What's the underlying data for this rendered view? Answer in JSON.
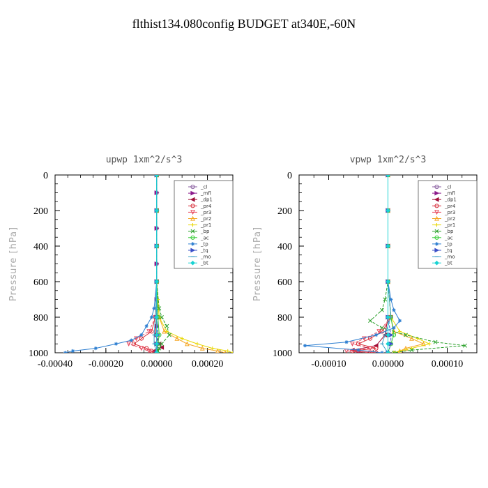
{
  "figure_title": "flthist134.080config  BUDGET at340E,-60N",
  "chart_data": [
    {
      "type": "line",
      "title": "upwp   1xm^2/s^3",
      "ylabel": "Pressure [hPa]",
      "xlim": [
        -0.0004,
        0.0003
      ],
      "ylim": [
        1000,
        0
      ],
      "xticks": [
        -0.0004,
        -0.0002,
        0.0,
        0.0002
      ],
      "xtick_labels": [
        "-0.00040",
        "-0.00020",
        "0.00000",
        "0.00020"
      ],
      "yticks": [
        0,
        200,
        400,
        600,
        800,
        1000
      ],
      "ytick_labels": [
        "0",
        "200",
        "400",
        "600",
        "800",
        "1000"
      ],
      "legend_position": "top-right",
      "grid": false,
      "series": [
        {
          "name": "_cl",
          "color": "#8a5fa0",
          "marker": "o",
          "pressure": [
            0,
            100,
            200,
            300,
            400,
            500,
            600,
            700,
            800,
            850,
            900,
            950,
            1000
          ],
          "values": [
            0,
            0,
            0,
            0,
            0,
            0,
            0,
            0,
            0,
            0,
            0,
            0,
            0
          ]
        },
        {
          "name": "_mfl",
          "color": "#8b1a8b",
          "marker": "tri-right",
          "pressure": [
            0,
            100,
            200,
            300,
            400,
            500,
            600,
            700,
            800,
            850,
            900,
            950,
            1000
          ],
          "values": [
            0,
            0,
            0,
            0,
            0,
            0,
            0,
            0,
            0,
            0,
            0,
            0,
            0
          ]
        },
        {
          "name": "_dp1",
          "color": "#a0103a",
          "marker": "tri-left",
          "pressure": [
            0,
            200,
            400,
            600,
            800,
            900,
            950,
            970,
            990,
            1000
          ],
          "values": [
            0,
            0,
            0,
            0,
            0,
            -5e-06,
            1e-05,
            2e-05,
            -1e-05,
            0
          ]
        },
        {
          "name": "_pr4",
          "color": "#d8303c",
          "marker": "o",
          "pressure": [
            0,
            200,
            400,
            600,
            800,
            880,
            920,
            950,
            975,
            990,
            1000
          ],
          "values": [
            0,
            0,
            0,
            0,
            -5e-06,
            -2e-05,
            -6e-05,
            -9e-05,
            -4e-05,
            -2e-05,
            0
          ]
        },
        {
          "name": "_pr3",
          "color": "#e84a5f",
          "marker": "tri-down",
          "pressure": [
            0,
            200,
            400,
            600,
            800,
            880,
            920,
            950,
            975,
            990,
            1000
          ],
          "values": [
            0,
            0,
            0,
            0,
            -5e-06,
            -3e-05,
            -8e-05,
            -0.00011,
            -6e-05,
            -3e-05,
            0
          ]
        },
        {
          "name": "_pr2",
          "color": "#f5a623",
          "marker": "tri-up",
          "pressure": [
            0,
            200,
            400,
            600,
            800,
            880,
            920,
            950,
            975,
            990,
            1000
          ],
          "values": [
            0,
            0,
            0,
            0,
            1e-05,
            3e-05,
            8e-05,
            0.00012,
            0.00018,
            0.00024,
            0.00027
          ]
        },
        {
          "name": "_pr1",
          "color": "#e8d800",
          "marker": "plus",
          "pressure": [
            0,
            200,
            400,
            600,
            700,
            800,
            880,
            920,
            950,
            975,
            990,
            1000
          ],
          "values": [
            0,
            0,
            0,
            0,
            5e-06,
            1e-05,
            4e-05,
            0.0001,
            0.00016,
            0.00022,
            0.00028,
            0.0003
          ]
        },
        {
          "name": "_bp",
          "color": "#2aa02a",
          "marker": "x",
          "pressure": [
            0,
            200,
            400,
            600,
            750,
            800,
            850,
            900,
            950,
            975,
            990,
            1000
          ],
          "values": [
            0,
            0,
            0,
            0,
            1e-05,
            2e-05,
            4e-05,
            5e-05,
            2e-05,
            1e-05,
            5e-06,
            0
          ]
        },
        {
          "name": "_ac",
          "color": "#33cc33",
          "marker": "o",
          "pressure": [
            0,
            200,
            400,
            600,
            800,
            900,
            950,
            1000
          ],
          "values": [
            0,
            0,
            0,
            0,
            5e-06,
            1e-05,
            5e-06,
            0
          ]
        },
        {
          "name": "_tp",
          "color": "#2e7fd1",
          "marker": "star",
          "pressure": [
            0,
            200,
            400,
            600,
            750,
            800,
            850,
            900,
            930,
            950,
            975,
            990,
            1000
          ],
          "values": [
            0,
            0,
            0,
            0,
            -1e-05,
            -2e-05,
            -4e-05,
            -6e-05,
            -0.0001,
            -0.00016,
            -0.00024,
            -0.00033,
            -0.00036
          ]
        },
        {
          "name": "_tq",
          "color": "#3a50c8",
          "marker": "tri-right",
          "pressure": [
            0,
            200,
            400,
            600,
            800,
            900,
            950,
            1000
          ],
          "values": [
            0,
            0,
            0,
            0,
            0,
            5e-06,
            5e-06,
            0
          ]
        },
        {
          "name": "_mo",
          "color": "#3aa0c8",
          "marker": "dash",
          "pressure": [
            0,
            200,
            400,
            600,
            800,
            900,
            950,
            1000
          ],
          "values": [
            0,
            0,
            0,
            0,
            -5e-06,
            -1e-05,
            -1e-05,
            0
          ]
        },
        {
          "name": "_bt",
          "color": "#19d3d3",
          "marker": "diamond",
          "pressure": [
            0,
            200,
            400,
            600,
            800,
            900,
            950,
            1000
          ],
          "values": [
            0,
            0,
            0,
            0,
            0,
            0,
            0,
            0
          ]
        }
      ]
    },
    {
      "type": "line",
      "title": "vpwp   1xm^2/s^3",
      "ylabel": "Pressure [hPa]",
      "xlim": [
        -0.00015,
        0.00015
      ],
      "ylim": [
        1000,
        0
      ],
      "xticks": [
        -0.0001,
        0.0,
        0.0001
      ],
      "xtick_labels": [
        "-0.00010",
        "0.00000",
        "0.00010"
      ],
      "yticks": [
        0,
        200,
        400,
        600,
        800,
        1000
      ],
      "ytick_labels": [
        "0",
        "200",
        "400",
        "600",
        "800",
        "1000"
      ],
      "legend_position": "top-right",
      "grid": false,
      "series": [
        {
          "name": "_cl",
          "color": "#8a5fa0",
          "marker": "o",
          "pressure": [
            0,
            200,
            400,
            600,
            800,
            900,
            1000
          ],
          "values": [
            0,
            0,
            0,
            0,
            0,
            0,
            0
          ]
        },
        {
          "name": "_mfl",
          "color": "#8b1a8b",
          "marker": "tri-right",
          "pressure": [
            0,
            200,
            400,
            600,
            800,
            900,
            1000
          ],
          "values": [
            0,
            0,
            0,
            0,
            0,
            0,
            0
          ]
        },
        {
          "name": "_dp1",
          "color": "#a0103a",
          "marker": "tri-left",
          "pressure": [
            0,
            200,
            400,
            600,
            800,
            900,
            960,
            985,
            1000
          ],
          "values": [
            0,
            0,
            0,
            0,
            0,
            -5e-06,
            -2e-05,
            -6e-05,
            -5e-05
          ]
        },
        {
          "name": "_pr4",
          "color": "#d8303c",
          "marker": "o",
          "pressure": [
            0,
            200,
            400,
            600,
            800,
            880,
            920,
            950,
            975,
            990,
            1000
          ],
          "values": [
            0,
            0,
            0,
            0,
            5e-06,
            -1e-05,
            -3e-05,
            -5e-05,
            -2e-05,
            -6e-05,
            -2e-05
          ]
        },
        {
          "name": "_pr3",
          "color": "#e84a5f",
          "marker": "tri-down",
          "pressure": [
            0,
            200,
            400,
            600,
            800,
            880,
            920,
            950,
            975,
            990,
            1000
          ],
          "values": [
            0,
            0,
            0,
            0,
            5e-06,
            -1.5e-05,
            -4e-05,
            -6e-05,
            -3e-05,
            -7e-05,
            -3e-05
          ]
        },
        {
          "name": "_pr2",
          "color": "#f5a623",
          "marker": "tri-up",
          "pressure": [
            0,
            200,
            400,
            600,
            800,
            880,
            920,
            950,
            975,
            990,
            1000
          ],
          "values": [
            0,
            0,
            0,
            0,
            5e-06,
            1e-05,
            4e-05,
            6e-05,
            3e-05,
            2e-05,
            1e-05
          ]
        },
        {
          "name": "_pr1",
          "color": "#e8d800",
          "marker": "plus",
          "pressure": [
            0,
            200,
            400,
            600,
            800,
            880,
            920,
            950,
            975,
            990,
            1000
          ],
          "values": [
            0,
            0,
            0,
            0,
            5e-06,
            2e-05,
            5e-05,
            7e-05,
            4e-05,
            2e-05,
            1e-05
          ]
        },
        {
          "name": "_bp",
          "color": "#2aa02a",
          "marker": "x",
          "pressure": [
            0,
            200,
            400,
            600,
            700,
            760,
            820,
            860,
            900,
            940,
            960,
            985,
            1000
          ],
          "values": [
            0,
            0,
            0,
            0,
            -5e-06,
            -1e-05,
            -3e-05,
            -1e-05,
            3e-05,
            8e-05,
            0.00013,
            4e-05,
            1e-05
          ]
        },
        {
          "name": "_ac",
          "color": "#33cc33",
          "marker": "o",
          "pressure": [
            0,
            200,
            400,
            600,
            800,
            900,
            950,
            1000
          ],
          "values": [
            0,
            0,
            0,
            0,
            5e-06,
            1e-05,
            5e-06,
            0
          ]
        },
        {
          "name": "_tp",
          "color": "#2e7fd1",
          "marker": "star",
          "pressure": [
            0,
            200,
            400,
            600,
            700,
            760,
            820,
            860,
            900,
            940,
            960,
            985,
            1000
          ],
          "values": [
            0,
            0,
            0,
            0,
            5e-06,
            1e-05,
            2e-05,
            1e-05,
            -2e-05,
            -7e-05,
            -0.00014,
            -5e-05,
            -1e-05
          ]
        },
        {
          "name": "_tq",
          "color": "#3a50c8",
          "marker": "tri-right",
          "pressure": [
            0,
            200,
            400,
            600,
            800,
            900,
            950,
            1000
          ],
          "values": [
            0,
            0,
            0,
            0,
            0,
            5e-06,
            5e-06,
            0
          ]
        },
        {
          "name": "_mo",
          "color": "#3aa0c8",
          "marker": "dash",
          "pressure": [
            0,
            200,
            400,
            600,
            800,
            900,
            950,
            1000
          ],
          "values": [
            0,
            0,
            0,
            0,
            5e-06,
            -5e-06,
            -1e-05,
            0
          ]
        },
        {
          "name": "_bt",
          "color": "#19d3d3",
          "marker": "diamond",
          "pressure": [
            0,
            200,
            400,
            600,
            800,
            900,
            950,
            1000
          ],
          "values": [
            0,
            0,
            0,
            0,
            0,
            0,
            0,
            0
          ]
        }
      ]
    }
  ]
}
